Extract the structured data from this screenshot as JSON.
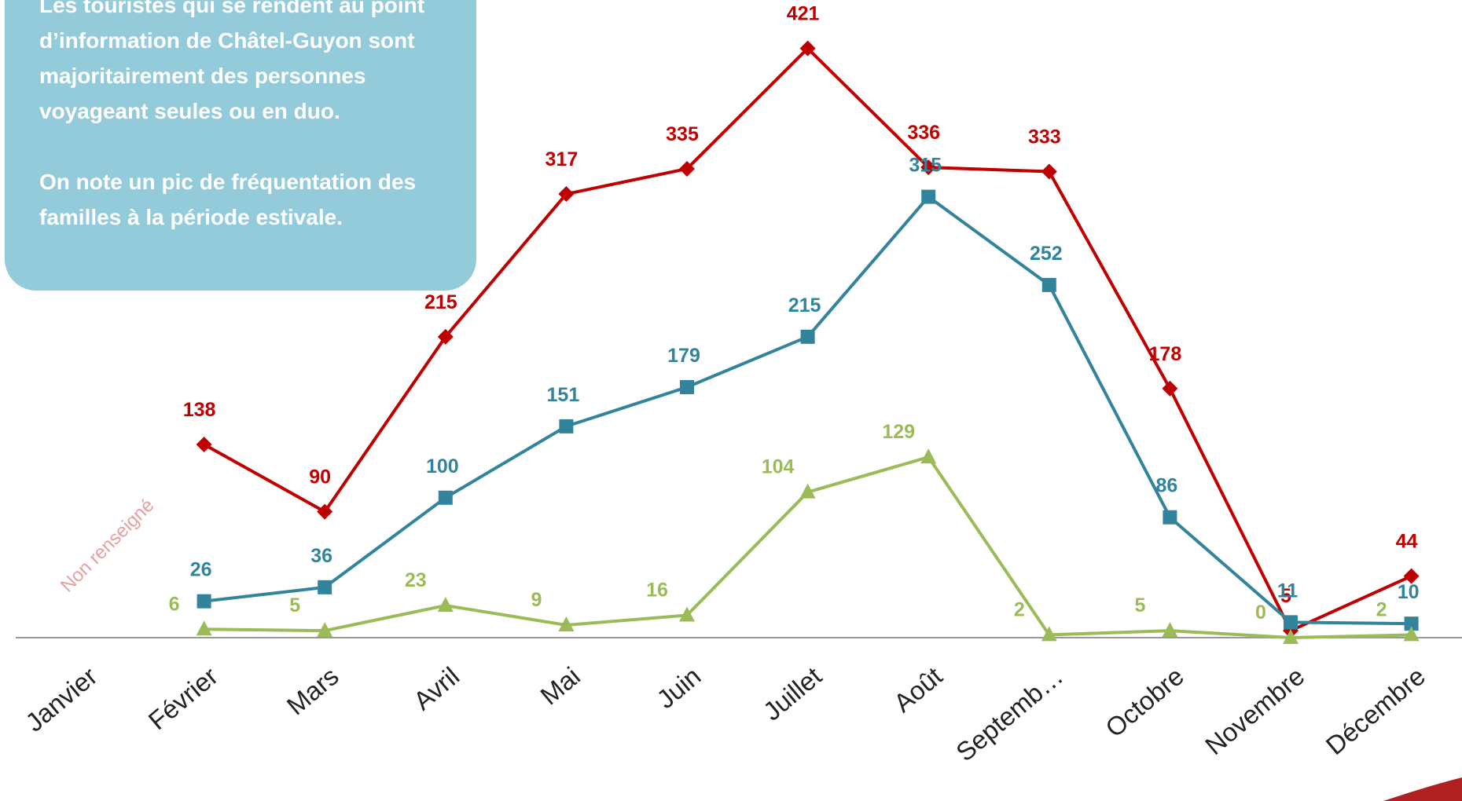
{
  "chart_data": {
    "type": "line",
    "categories": [
      "Janvier",
      "Février",
      "Mars",
      "Avril",
      "Mai",
      "Juin",
      "Juillet",
      "Août",
      "Septemb…",
      "Octobre",
      "Novembre",
      "Décembre"
    ],
    "series": [
      {
        "color": "#c00000",
        "marker": "diamond",
        "values": [
          null,
          138,
          90,
          215,
          317,
          335,
          421,
          336,
          333,
          178,
          5,
          44
        ]
      },
      {
        "color": "#31849b",
        "marker": "square",
        "values": [
          null,
          26,
          36,
          100,
          151,
          179,
          215,
          315,
          252,
          86,
          11,
          10
        ]
      },
      {
        "color": "#9bbb59",
        "marker": "triangle",
        "values": [
          null,
          6,
          5,
          23,
          9,
          16,
          104,
          129,
          2,
          5,
          0,
          2
        ]
      }
    ],
    "ylim": [
      0,
      450
    ],
    "annotation": "Non renseigné",
    "note": [
      "Les touristes qui se rendent au point d’information de Châtel-Guyon sont majoritairement des personnes voyageant seules ou en duo.",
      "On note un pic de fréquentation des familles à la période estivale."
    ]
  }
}
